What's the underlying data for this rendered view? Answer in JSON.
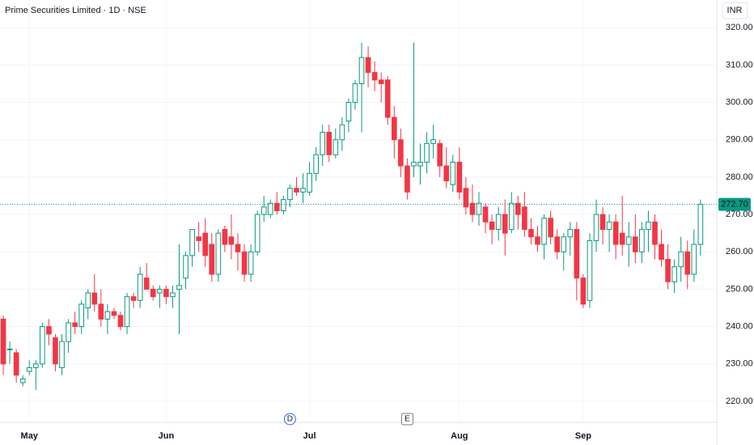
{
  "chart_data": {
    "type": "candlestick",
    "title": "Prime Securities Limited · 1D · NSE",
    "currency": "INR",
    "up_color": "#089981",
    "down_color": "#f23645",
    "ohlc": [
      [
        242,
        243,
        227,
        230
      ],
      [
        234,
        236,
        230,
        234
      ],
      [
        233,
        234,
        225,
        227
      ],
      [
        225,
        227,
        224,
        226
      ],
      [
        228,
        231,
        227,
        229
      ],
      [
        229,
        231,
        223,
        230
      ],
      [
        230,
        241,
        229,
        240
      ],
      [
        240,
        242,
        235,
        238
      ],
      [
        237,
        238,
        228,
        230
      ],
      [
        229,
        238,
        227,
        236
      ],
      [
        236,
        242,
        233,
        241
      ],
      [
        241,
        244,
        238,
        240
      ],
      [
        240,
        247,
        238,
        246
      ],
      [
        245,
        250,
        242,
        249
      ],
      [
        249,
        254,
        244,
        246
      ],
      [
        246,
        250,
        240,
        242
      ],
      [
        242,
        246,
        238,
        244
      ],
      [
        244,
        245,
        242,
        243
      ],
      [
        243,
        244,
        239,
        240
      ],
      [
        240,
        249,
        238,
        248
      ],
      [
        248,
        249,
        245,
        247
      ],
      [
        247,
        256,
        245,
        254
      ],
      [
        253,
        257,
        250,
        250
      ],
      [
        250,
        251,
        247,
        248
      ],
      [
        249,
        251,
        245,
        250
      ],
      [
        250,
        251,
        246,
        248
      ],
      [
        248,
        251,
        245,
        249
      ],
      [
        250,
        262,
        238,
        251
      ],
      [
        253,
        260,
        250,
        259
      ],
      [
        259,
        266,
        256,
        266
      ],
      [
        264,
        268,
        260,
        263
      ],
      [
        265,
        269,
        256,
        259
      ],
      [
        262,
        265,
        252,
        254
      ],
      [
        254,
        266,
        252,
        265
      ],
      [
        266,
        267,
        260,
        262
      ],
      [
        264,
        270,
        258,
        262
      ],
      [
        262,
        265,
        255,
        260
      ],
      [
        260,
        262,
        252,
        254
      ],
      [
        254,
        262,
        252,
        260
      ],
      [
        260,
        271,
        259,
        270
      ],
      [
        270,
        275,
        268,
        272
      ],
      [
        270,
        274,
        269,
        273
      ],
      [
        273,
        276,
        270,
        271
      ],
      [
        271,
        275,
        270,
        274
      ],
      [
        274,
        278,
        272,
        277
      ],
      [
        277,
        280,
        275,
        276
      ],
      [
        276,
        281,
        273,
        277
      ],
      [
        276,
        284,
        275,
        281
      ],
      [
        281,
        288,
        279,
        286
      ],
      [
        286,
        294,
        283,
        292
      ],
      [
        292,
        294,
        284,
        286
      ],
      [
        286,
        293,
        285,
        290
      ],
      [
        290,
        296,
        287,
        294
      ],
      [
        295,
        301,
        292,
        300
      ],
      [
        300,
        306,
        298,
        305
      ],
      [
        305,
        316,
        292,
        312
      ],
      [
        312,
        315,
        304,
        308
      ],
      [
        308,
        311,
        303,
        306
      ],
      [
        306,
        308,
        300,
        305
      ],
      [
        306,
        307,
        294,
        296
      ],
      [
        296,
        299,
        285,
        290
      ],
      [
        290,
        293,
        280,
        283
      ],
      [
        283,
        285,
        274,
        276
      ],
      [
        283,
        316,
        280,
        284
      ],
      [
        283,
        289,
        278,
        284
      ],
      [
        284,
        292,
        281,
        289
      ],
      [
        289,
        294,
        285,
        290
      ],
      [
        289,
        290,
        280,
        283
      ],
      [
        283,
        288,
        277,
        279
      ],
      [
        278,
        286,
        276,
        284
      ],
      [
        284,
        288,
        274,
        276
      ],
      [
        277,
        280,
        270,
        272
      ],
      [
        273,
        278,
        268,
        270
      ],
      [
        270,
        276,
        267,
        273
      ],
      [
        272,
        273,
        265,
        268
      ],
      [
        268,
        270,
        262,
        266
      ],
      [
        266,
        272,
        263,
        270
      ],
      [
        270,
        274,
        259,
        265
      ],
      [
        266,
        276,
        265,
        273
      ],
      [
        273,
        275,
        266,
        270
      ],
      [
        272,
        276,
        264,
        266
      ],
      [
        266,
        269,
        262,
        264
      ],
      [
        264,
        267,
        260,
        262
      ],
      [
        262,
        270,
        258,
        269
      ],
      [
        269,
        271,
        262,
        264
      ],
      [
        264,
        266,
        258,
        260
      ],
      [
        260,
        265,
        255,
        264
      ],
      [
        264,
        268,
        259,
        266
      ],
      [
        266,
        268,
        247,
        253
      ],
      [
        253,
        254,
        245,
        246
      ],
      [
        247,
        265,
        245,
        263
      ],
      [
        263,
        274,
        260,
        270
      ],
      [
        270,
        272,
        262,
        266
      ],
      [
        266,
        270,
        260,
        268
      ],
      [
        268,
        270,
        258,
        262
      ],
      [
        265,
        275,
        259,
        262
      ],
      [
        262,
        268,
        256,
        264
      ],
      [
        264,
        270,
        257,
        260
      ],
      [
        260,
        268,
        257,
        266
      ],
      [
        266,
        271,
        260,
        268
      ],
      [
        268,
        270,
        258,
        262
      ],
      [
        262,
        266,
        256,
        258
      ],
      [
        258,
        262,
        250,
        252
      ],
      [
        252,
        258,
        249,
        256
      ],
      [
        256,
        264,
        252,
        260
      ],
      [
        260,
        263,
        250,
        254
      ],
      [
        254,
        266,
        252,
        262
      ],
      [
        262,
        274,
        259,
        272.7
      ]
    ],
    "xlim": [
      -0.5,
      109.5
    ],
    "xticks": [
      {
        "value": 4,
        "label": "May"
      },
      {
        "value": 25,
        "label": "Jun"
      },
      {
        "value": 47,
        "label": "Jul"
      },
      {
        "value": 70,
        "label": "Aug"
      },
      {
        "value": 89,
        "label": "Sep"
      }
    ],
    "ylim": [
      214.8,
      327.4
    ],
    "yticks": [
      {
        "value": 220,
        "label": "220.00"
      },
      {
        "value": 230,
        "label": "230.00"
      },
      {
        "value": 240,
        "label": "240.00"
      },
      {
        "value": 250,
        "label": "250.00"
      },
      {
        "value": 260,
        "label": "260.00"
      },
      {
        "value": 270,
        "label": "270.00"
      },
      {
        "value": 280,
        "label": "280.00"
      },
      {
        "value": 290,
        "label": "290.00"
      },
      {
        "value": 300,
        "label": "300.00"
      },
      {
        "value": 310,
        "label": "310.00"
      },
      {
        "value": 320,
        "label": "320.00"
      }
    ],
    "last_price": {
      "value": 272.7,
      "label": "272.70"
    },
    "events": [
      {
        "x": 44,
        "label": "D"
      },
      {
        "x": 62,
        "label": "E"
      }
    ],
    "grid": true
  }
}
